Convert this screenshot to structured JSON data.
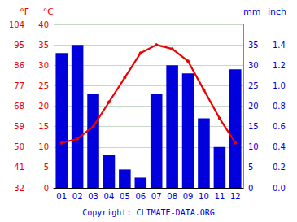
{
  "chart_data": {
    "type": "bar",
    "categories": [
      "01",
      "02",
      "03",
      "04",
      "05",
      "06",
      "07",
      "08",
      "09",
      "10",
      "11",
      "12"
    ],
    "series": [
      {
        "type": "bar",
        "color": "#0000dd",
        "axis": "y2",
        "values": [
          33,
          35,
          23,
          8,
          4.5,
          2.5,
          23,
          30,
          28,
          17,
          10,
          29
        ]
      },
      {
        "type": "line",
        "color": "#ee0000",
        "marker": "o",
        "values": [
          11,
          12,
          15,
          21,
          27,
          33,
          35,
          34,
          31,
          24,
          17,
          11
        ]
      }
    ],
    "ylabel": "°C",
    "ylim": [
      0,
      40
    ],
    "yticks": [
      0,
      5,
      10,
      15,
      20,
      25,
      30,
      35,
      40
    ],
    "ylabel_alt": "°F",
    "yticks_alt": [
      {
        "value": 0,
        "label": "32"
      },
      {
        "value": 5,
        "label": "41"
      },
      {
        "value": 10,
        "label": "50"
      },
      {
        "value": 15,
        "label": "59"
      },
      {
        "value": 20,
        "label": "68"
      },
      {
        "value": 25,
        "label": "77"
      },
      {
        "value": 30,
        "label": "86"
      },
      {
        "value": 35,
        "label": "95"
      },
      {
        "value": 40,
        "label": "104"
      }
    ],
    "y2label": "mm",
    "y2lim": [
      0,
      40
    ],
    "y2ticks": [
      0,
      5,
      10,
      15,
      20,
      25,
      30,
      35
    ],
    "y2label_alt": "inch",
    "y2ticks_alt": [
      {
        "value": 0,
        "label": "0.0"
      },
      {
        "value": 5,
        "label": "0.2"
      },
      {
        "value": 10,
        "label": "0.4"
      },
      {
        "value": 15,
        "label": "0.6"
      },
      {
        "value": 20,
        "label": "0.8"
      },
      {
        "value": 25,
        "label": "1.0"
      },
      {
        "value": 30,
        "label": "1.2"
      },
      {
        "value": 35,
        "label": "1.4"
      }
    ],
    "grid": true,
    "annotation": "Copyright: CLIMATE-DATA.ORG"
  }
}
